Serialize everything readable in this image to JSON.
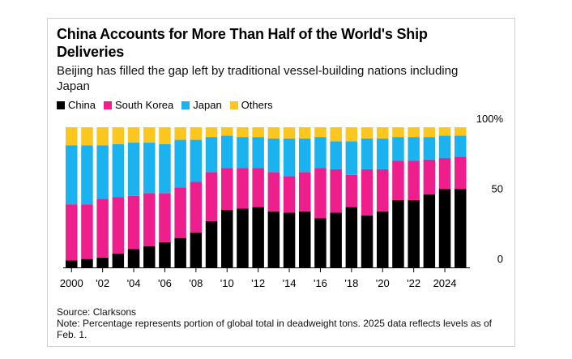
{
  "title": "China Accounts for More Than Half of the World's Ship Deliveries",
  "subtitle": "Beijing has filled the gap left by traditional vessel-building nations including Japan",
  "source": "Source: Clarksons",
  "note": "Note: Percentage represents portion of global total in deadweight tons. 2025 data reflects levels as of Feb. 1.",
  "colors": {
    "China": "#000000",
    "South Korea": "#ee1e8c",
    "Japan": "#1ab3f0",
    "Others": "#fbc71f"
  },
  "chart_data": {
    "type": "bar",
    "stacked": true,
    "orientation": "vertical",
    "x": [
      2000,
      2001,
      2002,
      2003,
      2004,
      2005,
      2006,
      2007,
      2008,
      2009,
      2010,
      2011,
      2012,
      2013,
      2014,
      2015,
      2016,
      2017,
      2018,
      2019,
      2020,
      2021,
      2022,
      2023,
      2024,
      2025
    ],
    "x_tick_labels": [
      "2000",
      "'02",
      "'04",
      "'06",
      "'08",
      "'10",
      "'12",
      "'14",
      "'16",
      "'18",
      "'20",
      "'22",
      "2024"
    ],
    "x_tick_positions": [
      2000,
      2002,
      2004,
      2006,
      2008,
      2010,
      2012,
      2014,
      2016,
      2018,
      2020,
      2022,
      2024
    ],
    "y_tick_labels": [
      "100%",
      "50",
      "0"
    ],
    "y_tick_values": [
      100,
      50,
      0
    ],
    "ylim": [
      0,
      100
    ],
    "legend_position": "top-left",
    "grid": false,
    "series": [
      {
        "name": "China",
        "values": [
          5,
          6,
          7,
          10,
          13,
          15,
          18,
          21,
          25,
          33,
          41,
          42,
          43,
          40,
          39,
          40,
          35,
          39,
          43,
          37,
          40,
          48,
          48,
          52,
          56,
          56
        ]
      },
      {
        "name": "South Korea",
        "values": [
          40,
          39,
          42,
          40,
          38,
          38,
          35,
          36,
          36,
          35,
          30,
          29,
          28,
          28,
          26,
          28,
          36,
          31,
          23,
          33,
          30,
          28,
          28,
          25,
          22,
          23
        ]
      },
      {
        "name": "Japan",
        "values": [
          42,
          42,
          38,
          38,
          38,
          36,
          35,
          34,
          30,
          25,
          23,
          22,
          22,
          24,
          27,
          24,
          22,
          20,
          24,
          22,
          22,
          17,
          17,
          16,
          16,
          15
        ]
      },
      {
        "name": "Others",
        "values": [
          13,
          13,
          13,
          12,
          11,
          11,
          12,
          9,
          9,
          7,
          6,
          7,
          7,
          8,
          8,
          8,
          7,
          10,
          10,
          8,
          8,
          7,
          7,
          7,
          6,
          6
        ]
      }
    ]
  }
}
